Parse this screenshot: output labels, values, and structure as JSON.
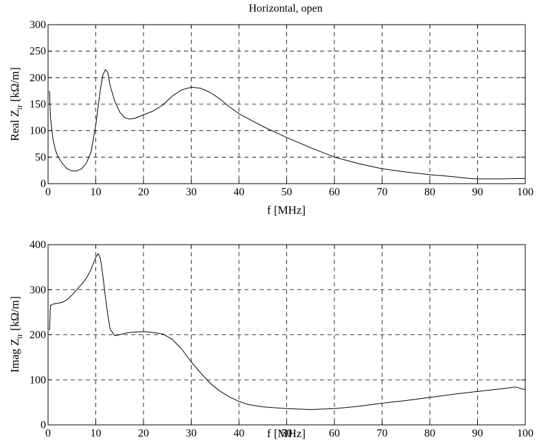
{
  "figure_title": "Horizontal, open",
  "chart_data": [
    {
      "type": "line",
      "title": "Horizontal, open",
      "xlabel": "f [MHz]",
      "ylabel_main": "Real Z",
      "ylabel_sub": "tr",
      "ylabel_unit": " [kΩ/m]",
      "xlim": [
        0,
        100
      ],
      "ylim": [
        0,
        300
      ],
      "xticks": [
        0,
        10,
        20,
        30,
        40,
        50,
        60,
        70,
        80,
        90,
        100
      ],
      "yticks": [
        0,
        50,
        100,
        150,
        200,
        250,
        300
      ],
      "grid": true,
      "series": [
        {
          "x": [
            0.3,
            0.5,
            1,
            1.5,
            2,
            3,
            4,
            5,
            6,
            7,
            8,
            9,
            10,
            11,
            11.5,
            12,
            12.5,
            13,
            14,
            15,
            16,
            17,
            18,
            19,
            20,
            22,
            24,
            26,
            28,
            30,
            32,
            34,
            36,
            38,
            40,
            45,
            50,
            55,
            60,
            65,
            70,
            75,
            80,
            85,
            88,
            90,
            95,
            100
          ],
          "y": [
            175,
            125,
            85,
            65,
            52,
            38,
            28,
            24,
            24,
            28,
            38,
            60,
            110,
            180,
            205,
            215,
            210,
            185,
            155,
            135,
            125,
            122,
            123,
            126,
            130,
            137,
            148,
            165,
            177,
            182,
            180,
            172,
            160,
            145,
            132,
            108,
            87,
            68,
            50,
            38,
            28,
            22,
            17,
            13,
            10,
            9,
            9,
            10
          ]
        }
      ]
    },
    {
      "type": "line",
      "xlabel": "f [MHz]",
      "ylabel_main": "Imag Z",
      "ylabel_sub": "tr",
      "ylabel_unit": " [kΩ/m]",
      "xlim": [
        0,
        100
      ],
      "ylim": [
        0,
        400
      ],
      "xticks": [
        0,
        10,
        20,
        30,
        40,
        50,
        60,
        70,
        80,
        90,
        100
      ],
      "yticks": [
        0,
        100,
        200,
        300,
        400
      ],
      "grid": true,
      "series": [
        {
          "x": [
            0.3,
            0.5,
            1,
            2,
            3,
            4,
            5,
            6,
            7,
            8,
            9,
            10,
            10.5,
            11,
            11.5,
            12,
            12.5,
            13,
            14,
            15,
            16,
            17,
            18,
            20,
            22,
            24,
            26,
            28,
            30,
            32,
            34,
            36,
            38,
            40,
            42,
            45,
            50,
            55,
            60,
            65,
            70,
            75,
            80,
            85,
            90,
            95,
            98,
            100
          ],
          "y": [
            210,
            265,
            268,
            270,
            272,
            278,
            288,
            300,
            312,
            325,
            345,
            372,
            380,
            368,
            330,
            285,
            245,
            212,
            198,
            200,
            203,
            205,
            206,
            207,
            205,
            202,
            190,
            168,
            140,
            115,
            92,
            75,
            62,
            52,
            45,
            40,
            36,
            34,
            36,
            41,
            48,
            54,
            61,
            68,
            74,
            80,
            84,
            78
          ]
        }
      ]
    }
  ]
}
